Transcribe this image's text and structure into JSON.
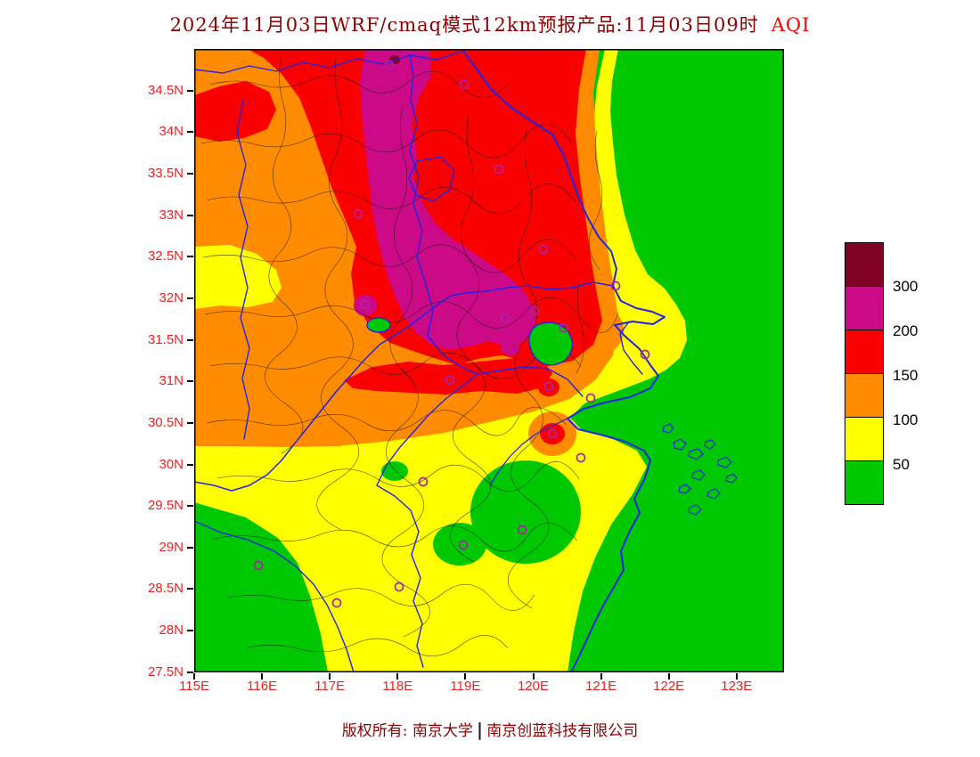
{
  "title": {
    "main": "2024年11月03日WRF/cmaq模式12km预报产品:11月03日09时",
    "aqi": "AQI"
  },
  "axes": {
    "lat_labels": [
      "34.5N",
      "34N",
      "33.5N",
      "33N",
      "32.5N",
      "32N",
      "31.5N",
      "31N",
      "30.5N",
      "30N",
      "29.5N",
      "29N",
      "28.5N",
      "28N",
      "27.5N"
    ],
    "lon_labels": [
      "115E",
      "116E",
      "117E",
      "118E",
      "119E",
      "120E",
      "121E",
      "122E",
      "123E"
    ]
  },
  "legend": {
    "title": "AQI",
    "values": [
      "300",
      "200",
      "150",
      "100",
      "50"
    ],
    "color_order": [
      "maroon",
      "magenta",
      "red",
      "orange",
      "yellow",
      "green"
    ]
  },
  "footer": {
    "left": "版权所有: 南京大学",
    "divider": "|",
    "right": "南京创蓝科技有限公司"
  },
  "colors": {
    "green": "#00c800",
    "yellow": "#ffff00",
    "orange": "#ff8c00",
    "red": "#fb0000",
    "magenta": "#cc0a87",
    "maroon": "#7e0023",
    "blue_border": "#2323e6",
    "black_county": "#1a1a1a",
    "purple_marker": "#aa22aa",
    "red_axis": "#ee2020",
    "dark_red_title": "#8b0000",
    "red_aqi": "#ff0000"
  }
}
